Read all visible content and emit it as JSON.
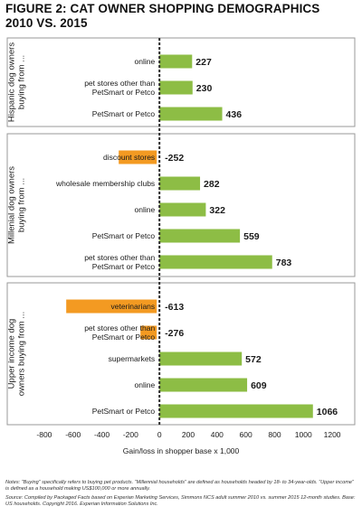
{
  "title_lines": [
    "FIGURE 2: CAT OWNER SHOPPING DEMOGRAPHICS",
    "2010 VS. 2015"
  ],
  "notes": {
    "line1": "Notes: “Buying” specifically refers to buying pet products. “Millennial households” are defined as households headed by 18- to 34-year-olds. “Upper income” is defined as a household making US$100,000 or more annually.",
    "line2": "Source: Compiled by Packaged Facts based on Experian Marketing Services, Simmons NCS adult summer 2010 vs. summer 2015 12-month studies. Base: US households. Copyright 2016. Experian Information Solutions Inc."
  },
  "colors": {
    "bar": "#8dbd45",
    "highlight": "#f39a22",
    "border": "#9a9a9a",
    "text": "#1a1a1a"
  },
  "chart_data": {
    "type": "bar",
    "orientation": "horizontal",
    "xlabel": "Gain/loss in shopper base x 1,000",
    "xlim": [
      -900,
      1300
    ],
    "xticks": [
      -800,
      -600,
      -400,
      -200,
      0,
      200,
      400,
      600,
      800,
      1000,
      1200
    ],
    "groups": [
      {
        "label_lines": [
          "Hispanic dog owners",
          "buying from ..."
        ],
        "bars": [
          {
            "category_lines": [
              "online"
            ],
            "value": 227,
            "value_label": "227",
            "highlight": false
          },
          {
            "category_lines": [
              "pet stores other than",
              "PetSmart or Petco"
            ],
            "value": 230,
            "value_label": "230",
            "highlight": false
          },
          {
            "category_lines": [
              "PetSmart or Petco"
            ],
            "value": 436,
            "value_label": "436",
            "highlight": false
          }
        ]
      },
      {
        "label_lines": [
          "Millenial dog owners",
          "buying from ..."
        ],
        "bars": [
          {
            "category_lines": [
              "discount stores"
            ],
            "value": -252,
            "value_label": "-252",
            "highlight": true
          },
          {
            "category_lines": [
              "wholesale membership clubs"
            ],
            "value": 282,
            "value_label": "282",
            "highlight": false
          },
          {
            "category_lines": [
              "online"
            ],
            "value": 322,
            "value_label": "322",
            "highlight": false
          },
          {
            "category_lines": [
              "PetSmart or Petco"
            ],
            "value": 559,
            "value_label": "559",
            "highlight": false
          },
          {
            "category_lines": [
              "pet stores other than",
              "PetSmart or Petco"
            ],
            "value": 783,
            "value_label": "783",
            "highlight": false
          }
        ]
      },
      {
        "label_lines": [
          "Upper income dog",
          "owners buying from ..."
        ],
        "bars": [
          {
            "category_lines": [
              "veterinarians"
            ],
            "value": -613,
            "value_label": "-613",
            "highlight": true
          },
          {
            "category_lines": [
              "pet stores other than",
              "PetSmart or Petco"
            ],
            "value": -276,
            "value_label": "-276",
            "highlight": true
          },
          {
            "category_lines": [
              "supermarkets"
            ],
            "value": 572,
            "value_label": "572",
            "highlight": false
          },
          {
            "category_lines": [
              "online"
            ],
            "value": 609,
            "value_label": "609",
            "highlight": false
          },
          {
            "category_lines": [
              "PetSmart or Petco"
            ],
            "value": 1066,
            "value_label": "1066",
            "highlight": false
          }
        ]
      }
    ]
  }
}
